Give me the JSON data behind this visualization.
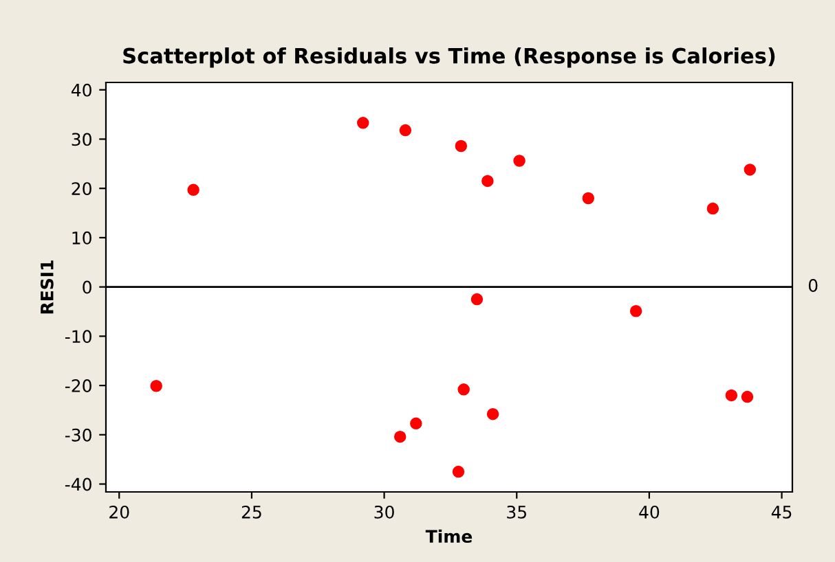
{
  "chart_data": {
    "type": "scatter",
    "title": "Scatterplot of Residuals vs Time (Response is Calories)",
    "xlabel": "Time",
    "ylabel": "RESI1",
    "x": [
      21.4,
      22.8,
      29.2,
      30.8,
      32.9,
      30.6,
      31.2,
      32.8,
      33.0,
      33.5,
      33.9,
      34.1,
      35.1,
      37.7,
      39.5,
      42.4,
      43.1,
      43.7,
      43.8
    ],
    "series": [
      {
        "color": "#ff0000",
        "values": [
          -20.1,
          19.7,
          33.3,
          31.8,
          28.6,
          -30.4,
          -27.7,
          -37.5,
          -20.8,
          -2.5,
          21.5,
          -25.8,
          25.6,
          18.0,
          -4.9,
          15.9,
          -22.0,
          -22.3,
          23.8
        ]
      }
    ],
    "xlim": [
      19.5,
      45.4
    ],
    "ylim": [
      -41.6,
      41.5
    ],
    "xticks": [
      20,
      25,
      30,
      35,
      40,
      45
    ],
    "yticks": [
      -40,
      -30,
      -20,
      -10,
      0,
      10,
      20,
      30,
      40
    ],
    "ref_lines": [
      {
        "axis": "y",
        "value": 0,
        "label": "0",
        "color": "#000000"
      }
    ],
    "marker": "circle",
    "grid": false,
    "legend": false
  }
}
